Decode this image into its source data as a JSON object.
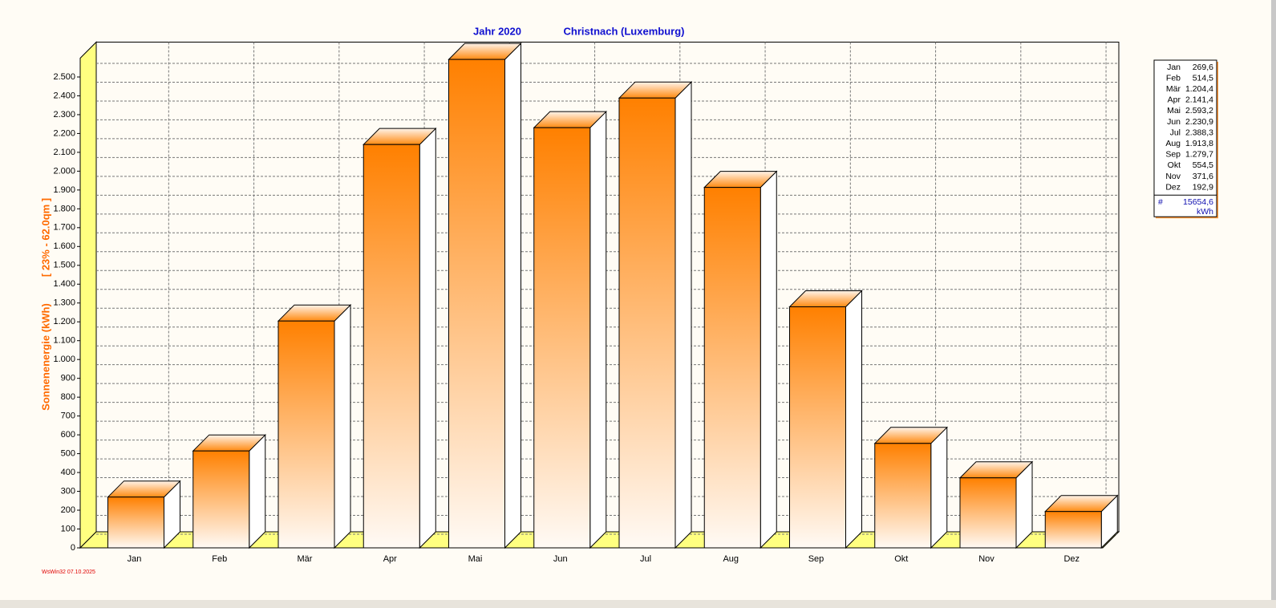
{
  "chart_data": {
    "type": "bar3d",
    "title": "Jahr  2020",
    "subtitle": "Christnach (Luxemburg)",
    "y_label": "Sonnenenergie  (kWh)",
    "y_label_note": "[ 23% - 62.0qm ]",
    "footer": "WsWin32  07.10.2025",
    "categories": [
      "Jan",
      "Feb",
      "Mär",
      "Apr",
      "Mai",
      "Jun",
      "Jul",
      "Aug",
      "Sep",
      "Okt",
      "Nov",
      "Dez"
    ],
    "values": [
      269.6,
      514.5,
      1204.4,
      2141.4,
      2593.2,
      2230.9,
      2388.3,
      1913.8,
      1279.7,
      554.5,
      371.6,
      192.9
    ],
    "value_labels": [
      "269,6",
      "514,5",
      "1.204,4",
      "2.141,4",
      "2.593,2",
      "2.230,9",
      "2.388,3",
      "1.913,8",
      "1.279,7",
      "554,5",
      "371,6",
      "192,9"
    ],
    "summary": {
      "symbol": "#",
      "total": "15654,6",
      "unit": "kWh"
    },
    "color": "#ff8000",
    "ylim": [
      0,
      2600
    ],
    "yticks": [
      0,
      100,
      200,
      300,
      400,
      500,
      600,
      700,
      800,
      900,
      {
        "value": 1000,
        "label": "1.000"
      },
      {
        "value": 1100,
        "label": "1.100"
      },
      {
        "value": 1200,
        "label": "1.200"
      },
      {
        "value": 1300,
        "label": "1.300"
      },
      {
        "value": 1400,
        "label": "1.400"
      },
      {
        "value": 1500,
        "label": "1.500"
      },
      {
        "value": 1600,
        "label": "1.600"
      },
      {
        "value": 1700,
        "label": "1.700"
      },
      {
        "value": 1800,
        "label": "1.800"
      },
      {
        "value": 1900,
        "label": "1.900"
      },
      {
        "value": 2000,
        "label": "2.000"
      },
      {
        "value": 2100,
        "label": "2.100"
      },
      {
        "value": 2200,
        "label": "2.200"
      },
      {
        "value": 2300,
        "label": "2.300"
      },
      {
        "value": 2400,
        "label": "2.400"
      },
      {
        "value": 2500,
        "label": "2.500"
      }
    ],
    "grid": true
  }
}
